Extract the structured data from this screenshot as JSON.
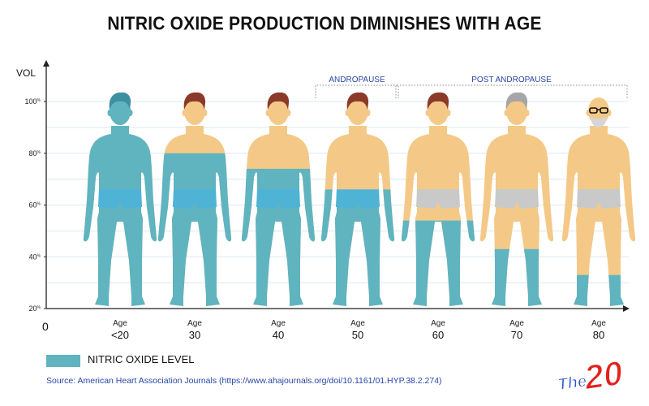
{
  "title": "NITRIC OXIDE PRODUCTION DIMINISHES WITH AGE",
  "colors": {
    "nitric_oxide": "#5fb4c0",
    "nitric_oxide_dark": "#4fa6b3",
    "skin": "#f4c987",
    "underwear": "#c9c9c9",
    "hair_blue": "#3f8fa3",
    "hair_brown": "#8b3a2a",
    "hair_gray": "#a6a6a6",
    "source_text": "#2747a6",
    "grid": "#dbe7f3"
  },
  "legend": {
    "label": "NITRIC OXIDE LEVEL"
  },
  "source": "Source: American Heart Association Journals (https://www.ahajournals.org/doi/10.1161/01.HYP.38.2.274)",
  "logo": {
    "the": "The",
    "num": "20"
  },
  "chart_data": {
    "type": "bar",
    "title": "NITRIC OXIDE PRODUCTION DIMINISHES WITH AGE",
    "ylabel": "VOL",
    "ylim": [
      20,
      100
    ],
    "yticks": [
      {
        "value": 20,
        "label": "20",
        "unit": "%"
      },
      {
        "value": 40,
        "label": "40",
        "unit": "%"
      },
      {
        "value": 60,
        "label": "60",
        "unit": "%"
      },
      {
        "value": 80,
        "label": "80",
        "unit": "%"
      },
      {
        "value": 100,
        "label": "100",
        "unit": "%"
      }
    ],
    "origin_label": "0",
    "grid": true,
    "categories": [
      {
        "top": "Age",
        "bottom": "<20"
      },
      {
        "top": "Age",
        "bottom": "30"
      },
      {
        "top": "Age",
        "bottom": "40"
      },
      {
        "top": "Age",
        "bottom": "50"
      },
      {
        "top": "Age",
        "bottom": "60"
      },
      {
        "top": "Age",
        "bottom": "70"
      },
      {
        "top": "Age",
        "bottom": "80"
      }
    ],
    "series": [
      {
        "name": "NITRIC OXIDE LEVEL",
        "values": [
          100,
          80,
          74,
          66,
          54,
          43,
          33
        ]
      }
    ],
    "hair": [
      "blue",
      "brown",
      "brown",
      "brown",
      "brown",
      "gray",
      "none"
    ],
    "bald": [
      false,
      false,
      false,
      false,
      false,
      false,
      true
    ],
    "glasses": [
      false,
      false,
      false,
      false,
      false,
      false,
      true
    ],
    "beard": [
      false,
      false,
      false,
      false,
      false,
      false,
      true
    ],
    "brackets": [
      {
        "label": "ANDROPAUSE",
        "from": 3,
        "to": 3
      },
      {
        "label": "POST ANDROPAUSE",
        "from": 4,
        "to": 6
      }
    ],
    "legend_position": "bottom-left"
  }
}
